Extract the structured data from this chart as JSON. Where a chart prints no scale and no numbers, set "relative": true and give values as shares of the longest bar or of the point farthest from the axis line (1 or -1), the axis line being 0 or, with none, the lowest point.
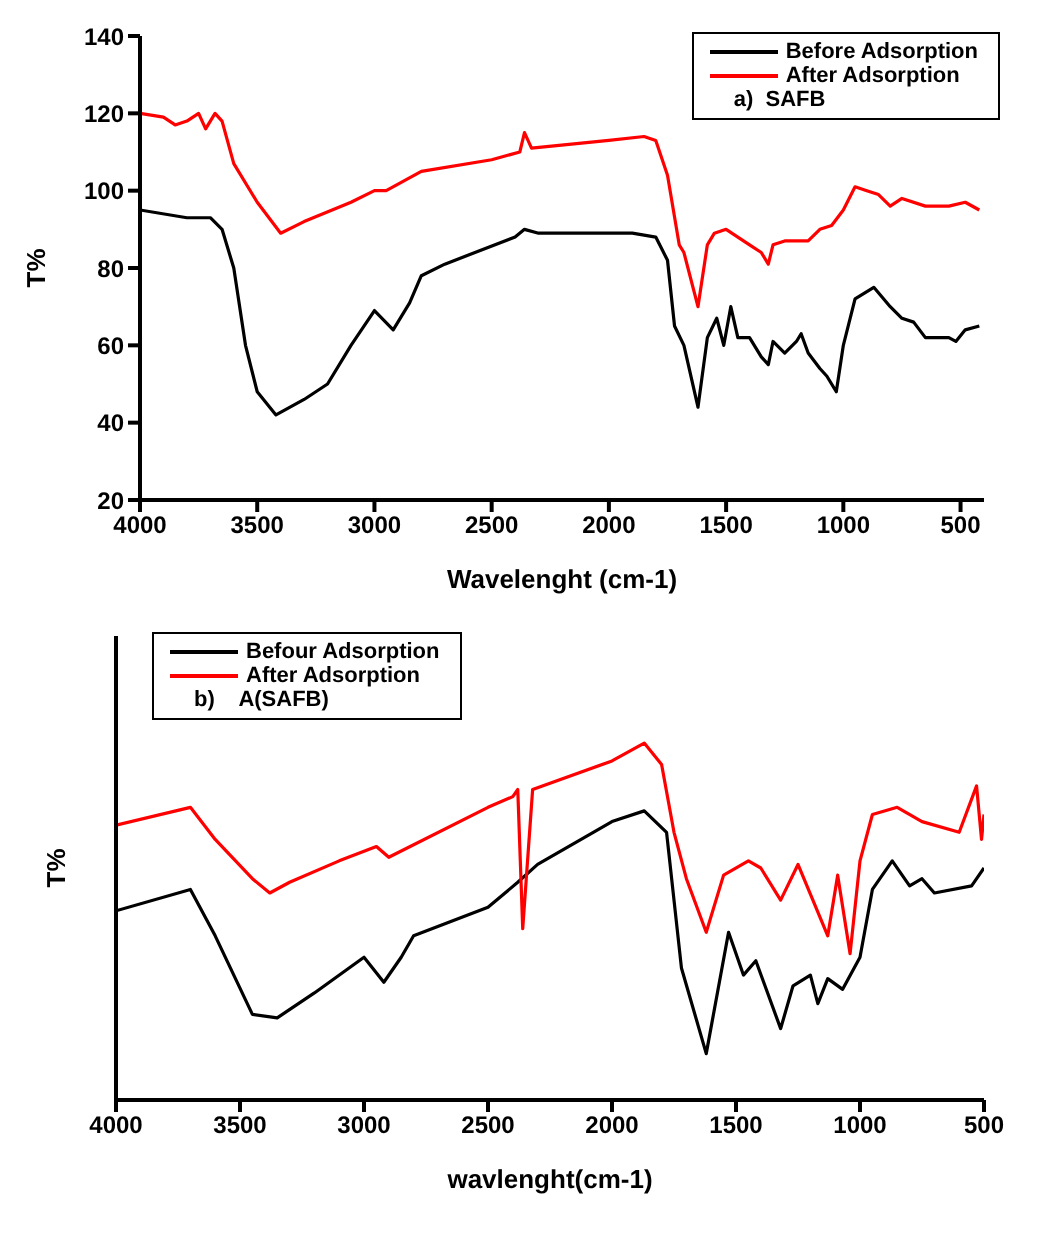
{
  "chart_data": [
    {
      "type": "line",
      "xlabel": "Wavelenght (cm-1)",
      "ylabel": "T%",
      "xlim": [
        4000,
        400
      ],
      "xticks": [
        4000,
        3500,
        3000,
        2500,
        2000,
        1500,
        1000,
        500
      ],
      "ylim": [
        20,
        140
      ],
      "yticks": [
        20,
        40,
        60,
        80,
        100,
        120,
        140
      ],
      "legend": "top right",
      "annotations": [
        "a)  SAFB"
      ],
      "marker": "none",
      "series": [
        {
          "name": "Before Adsorption",
          "color": "#000000",
          "x": [
            4000,
            3800,
            3700,
            3650,
            3600,
            3550,
            3500,
            3420,
            3300,
            3200,
            3100,
            3000,
            2920,
            2850,
            2800,
            2700,
            2400,
            2360,
            2300,
            1900,
            1800,
            1750,
            1720,
            1680,
            1620,
            1580,
            1540,
            1510,
            1480,
            1450,
            1400,
            1350,
            1320,
            1300,
            1250,
            1200,
            1180,
            1150,
            1100,
            1070,
            1030,
            1000,
            950,
            870,
            800,
            750,
            700,
            650,
            550,
            520,
            480,
            420
          ],
          "values": [
            95,
            93,
            93,
            90,
            80,
            60,
            48,
            42,
            46,
            50,
            60,
            69,
            64,
            71,
            78,
            81,
            88,
            90,
            89,
            89,
            88,
            82,
            65,
            60,
            44,
            62,
            67,
            60,
            70,
            62,
            62,
            57,
            55,
            61,
            58,
            61,
            63,
            58,
            54,
            52,
            48,
            60,
            72,
            75,
            70,
            67,
            66,
            62,
            62,
            61,
            64,
            65
          ]
        },
        {
          "name": "After Adsorption",
          "color": "#ff0000",
          "x": [
            4000,
            3900,
            3850,
            3800,
            3750,
            3720,
            3680,
            3650,
            3600,
            3500,
            3400,
            3300,
            3100,
            3000,
            2950,
            2800,
            2500,
            2380,
            2360,
            2330,
            2000,
            1850,
            1800,
            1750,
            1700,
            1680,
            1620,
            1580,
            1550,
            1500,
            1450,
            1400,
            1350,
            1320,
            1300,
            1250,
            1150,
            1100,
            1050,
            1000,
            950,
            900,
            850,
            800,
            750,
            650,
            550,
            480,
            420
          ],
          "values": [
            120,
            119,
            117,
            118,
            120,
            116,
            120,
            118,
            107,
            97,
            89,
            92,
            97,
            100,
            100,
            105,
            108,
            110,
            115,
            111,
            113,
            114,
            113,
            104,
            86,
            84,
            70,
            86,
            89,
            90,
            88,
            86,
            84,
            81,
            86,
            87,
            87,
            90,
            91,
            95,
            101,
            100,
            99,
            96,
            98,
            96,
            96,
            97,
            95
          ]
        }
      ]
    },
    {
      "type": "line",
      "relative": true,
      "xlabel": "wavlenght(cm-1)",
      "ylabel": "T%",
      "xlim": [
        4000,
        500
      ],
      "xticks": [
        4000,
        3500,
        3000,
        2500,
        2000,
        1500,
        1000,
        500
      ],
      "tick_labels": "x",
      "legend": "top left",
      "annotations": [
        "b)    A(SAFB)"
      ],
      "marker": "none",
      "series": [
        {
          "name": "Befour Adsorption",
          "color": "#000000",
          "x": [
            4000,
            3700,
            3600,
            3450,
            3350,
            3200,
            3000,
            2920,
            2850,
            2800,
            2500,
            2380,
            2300,
            2000,
            1870,
            1780,
            1720,
            1620,
            1530,
            1470,
            1420,
            1320,
            1270,
            1200,
            1170,
            1130,
            1070,
            1000,
            950,
            870,
            800,
            750,
            700,
            550,
            500
          ],
          "values": [
            0.53,
            0.59,
            0.46,
            0.24,
            0.23,
            0.3,
            0.4,
            0.33,
            0.4,
            0.46,
            0.54,
            0.61,
            0.66,
            0.78,
            0.81,
            0.75,
            0.37,
            0.13,
            0.47,
            0.35,
            0.39,
            0.2,
            0.32,
            0.35,
            0.27,
            0.34,
            0.31,
            0.4,
            0.59,
            0.67,
            0.6,
            0.62,
            0.58,
            0.6,
            0.65
          ]
        },
        {
          "name": "After Adsorption",
          "color": "#ff0000",
          "x": [
            4000,
            3700,
            3600,
            3450,
            3380,
            3300,
            3100,
            2950,
            2900,
            2500,
            2400,
            2380,
            2360,
            2320,
            2000,
            1870,
            1800,
            1750,
            1700,
            1620,
            1550,
            1450,
            1400,
            1320,
            1250,
            1130,
            1090,
            1040,
            1000,
            950,
            850,
            750,
            600,
            530,
            510,
            500
          ],
          "values": [
            0.77,
            0.82,
            0.73,
            0.62,
            0.58,
            0.61,
            0.67,
            0.71,
            0.68,
            0.82,
            0.85,
            0.87,
            0.48,
            0.87,
            0.95,
            1,
            0.94,
            0.75,
            0.62,
            0.47,
            0.63,
            0.67,
            0.65,
            0.56,
            0.66,
            0.46,
            0.63,
            0.41,
            0.67,
            0.8,
            0.82,
            0.78,
            0.75,
            0.88,
            0.73,
            0.8
          ]
        }
      ]
    }
  ]
}
